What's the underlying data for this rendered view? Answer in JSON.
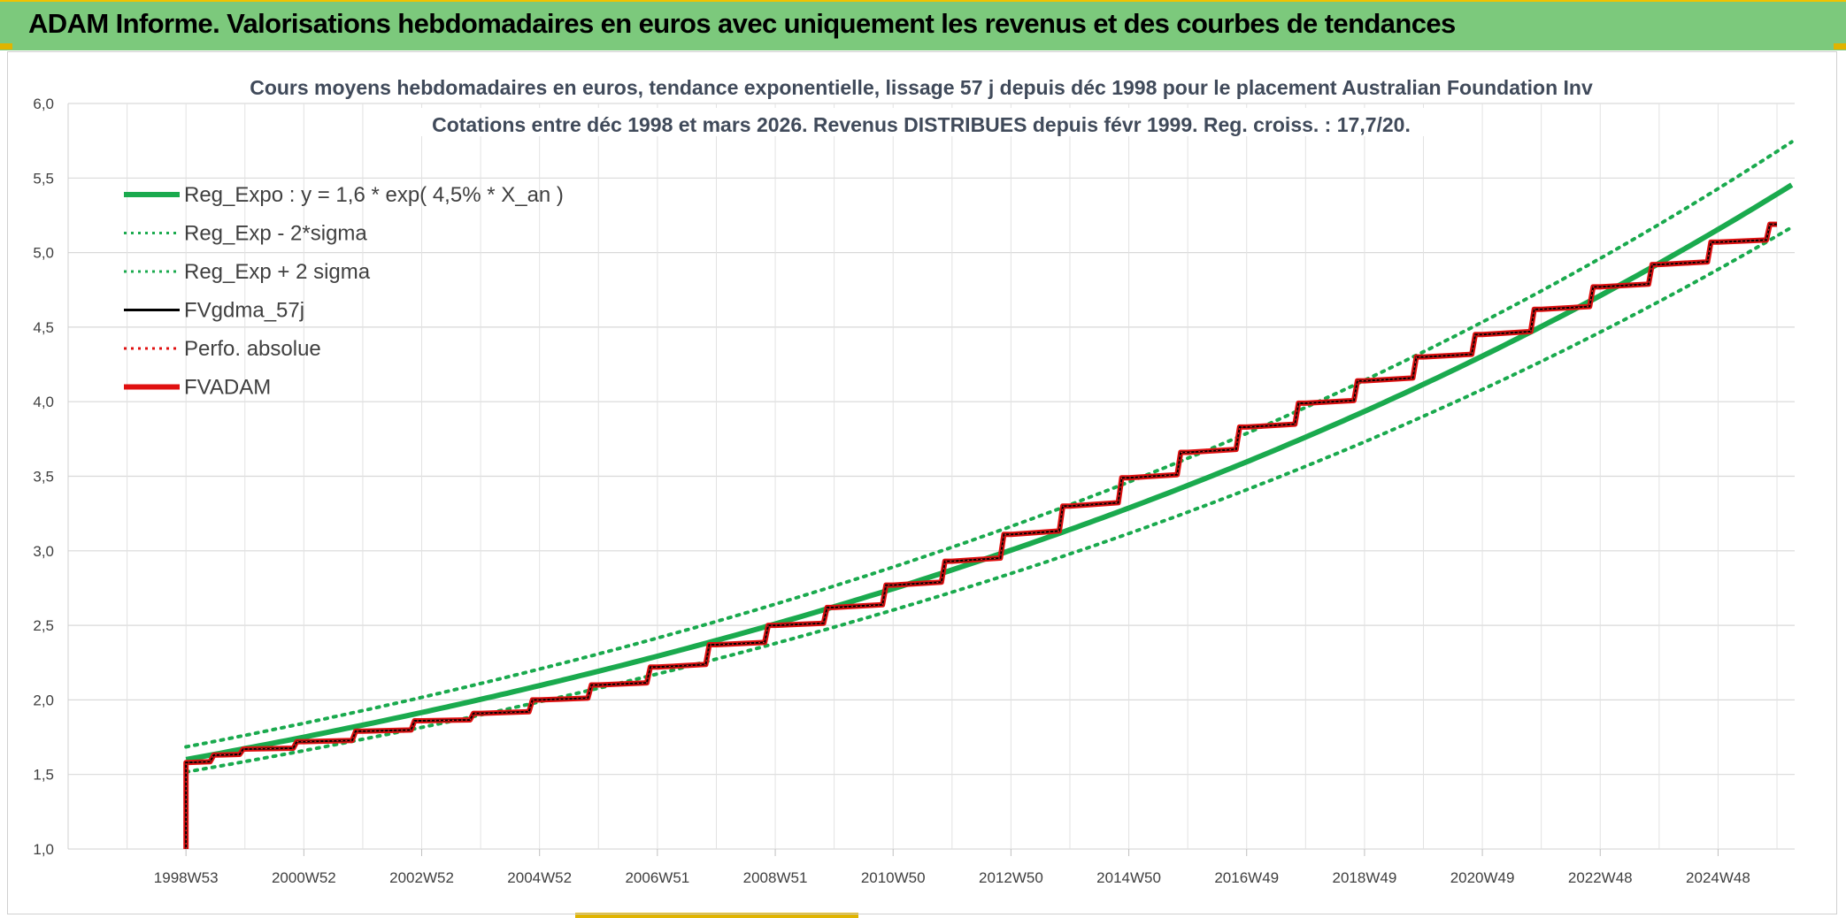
{
  "banner": {
    "title": "ADAM Informe. Valorisations hebdomadaires en euros avec uniquement les revenus et des courbes de tendances",
    "background": "#7cc97c",
    "accent": "#e0b400"
  },
  "chart_data": {
    "type": "line",
    "title": "Cours moyens hebdomadaires en euros, tendance exponentielle, lissage 57 j depuis déc 1998 pour le placement Australian Foundation Inv",
    "subtitle": "Cotations entre déc 1998 et mars 2026. Revenus DISTRIBUES depuis févr 1999. Reg. croiss. : 17,7/20.",
    "xlabel": "",
    "ylabel": "",
    "ylim": [
      1.0,
      6.0
    ],
    "ytick_step": 0.5,
    "y_tick_labels": [
      "1,0",
      "1,5",
      "2,0",
      "2,5",
      "3,0",
      "3,5",
      "4,0",
      "4,5",
      "5,0",
      "5,5",
      "6,0"
    ],
    "x_tick_labels": [
      "1998W53",
      "2000W52",
      "2002W52",
      "2004W52",
      "2006W51",
      "2008W51",
      "2010W50",
      "2012W50",
      "2014W50",
      "2016W49",
      "2018W49",
      "2020W49",
      "2022W48",
      "2024W48"
    ],
    "xlim_years": [
      1997.0,
      2026.3
    ],
    "grid": true,
    "legend_position": "top-left",
    "legend": [
      {
        "label": "Reg_Expo : y = 1,6 * exp( 4,5% *  X_an )",
        "color": "#1aaa4e",
        "style": "solid-thick"
      },
      {
        "label": "Reg_Exp - 2*sigma",
        "color": "#1aaa4e",
        "style": "dotted"
      },
      {
        "label": "Reg_Exp + 2 sigma",
        "color": "#1aaa4e",
        "style": "dotted"
      },
      {
        "label": "FVgdma_57j",
        "color": "#000000",
        "style": "solid"
      },
      {
        "label": "Perfo. absolue",
        "color": "#e01010",
        "style": "dotted"
      },
      {
        "label": "FVADAM",
        "color": "#e01010",
        "style": "solid-thick"
      }
    ],
    "regression": {
      "a": 1.6,
      "b": 0.045,
      "x_start": 1999.0,
      "x_end": 2026.25
    },
    "sigma_bands": {
      "upper_factor": 1.053,
      "lower_factor": 0.948
    },
    "fvadam_steps": [
      {
        "x": 1999.0,
        "y": 1.0
      },
      {
        "x": 1999.0,
        "y": 1.58
      },
      {
        "x": 1999.5,
        "y": 1.63
      },
      {
        "x": 2000.0,
        "y": 1.67
      },
      {
        "x": 2001.0,
        "y": 1.72
      },
      {
        "x": 2002.0,
        "y": 1.79
      },
      {
        "x": 2003.0,
        "y": 1.86
      },
      {
        "x": 2004.0,
        "y": 1.91
      },
      {
        "x": 2005.0,
        "y": 2.0
      },
      {
        "x": 2006.0,
        "y": 2.1
      },
      {
        "x": 2007.0,
        "y": 2.22
      },
      {
        "x": 2008.0,
        "y": 2.37
      },
      {
        "x": 2009.0,
        "y": 2.5
      },
      {
        "x": 2010.0,
        "y": 2.62
      },
      {
        "x": 2011.0,
        "y": 2.77
      },
      {
        "x": 2012.0,
        "y": 2.93
      },
      {
        "x": 2013.0,
        "y": 3.11
      },
      {
        "x": 2014.0,
        "y": 3.3
      },
      {
        "x": 2015.0,
        "y": 3.49
      },
      {
        "x": 2016.0,
        "y": 3.66
      },
      {
        "x": 2017.0,
        "y": 3.83
      },
      {
        "x": 2018.0,
        "y": 3.99
      },
      {
        "x": 2019.0,
        "y": 4.14
      },
      {
        "x": 2020.0,
        "y": 4.3
      },
      {
        "x": 2021.0,
        "y": 4.45
      },
      {
        "x": 2022.0,
        "y": 4.62
      },
      {
        "x": 2023.0,
        "y": 4.77
      },
      {
        "x": 2024.0,
        "y": 4.92
      },
      {
        "x": 2025.0,
        "y": 5.07
      },
      {
        "x": 2026.0,
        "y": 5.19
      }
    ]
  }
}
